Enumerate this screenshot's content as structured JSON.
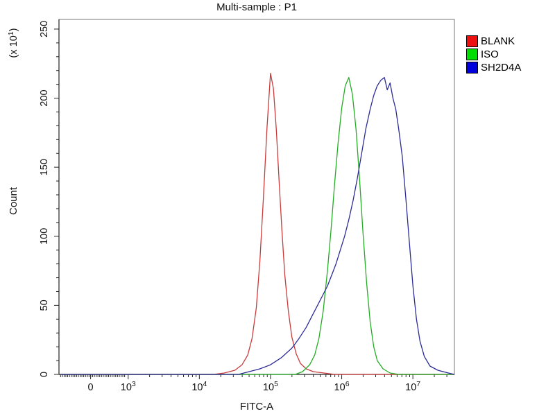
{
  "chart_data": {
    "type": "line",
    "subtype": "flow-cytometry-histogram-overlay",
    "title": "Multi-sample : P1",
    "xlabel": "FITC-A",
    "ylabel": "Count",
    "grid": false,
    "legend_position": "top-right-outside",
    "x_axis": {
      "scale": "flow-biexponential (linear near 0, logarithmic above 10^3)",
      "zero_frac": 0.08,
      "log3_frac": 0.175,
      "decade_frac": 0.18,
      "ticks": [
        {
          "label": "0",
          "type": "zero"
        },
        {
          "base": "10",
          "exp": "3",
          "log": 3
        },
        {
          "base": "10",
          "exp": "4",
          "log": 4
        },
        {
          "base": "10",
          "exp": "5",
          "log": 5
        },
        {
          "base": "10",
          "exp": "6",
          "log": 6
        },
        {
          "base": "10",
          "exp": "7",
          "log": 7
        }
      ],
      "minor_cluster": {
        "from": 0.004,
        "to": 0.168,
        "step": 0.0045
      }
    },
    "y_axis": {
      "min": 0,
      "max": 257,
      "tick_values": [
        0,
        50,
        100,
        150,
        200,
        250
      ],
      "tick_labels": [
        "0",
        "50",
        "100",
        "150",
        "200",
        "250"
      ],
      "minor_step": 10,
      "unit": {
        "open": "(x 10",
        "exp": "1",
        "close": ")"
      }
    },
    "series": [
      {
        "name": "BLANK",
        "curve_color": "#c93a3a",
        "legend_color": "#ee1111",
        "approx_peak_x": 100000,
        "approx_peak_count": 218,
        "points_logx_count": [
          [
            2.05,
            0
          ],
          [
            4.2,
            0
          ],
          [
            4.35,
            1
          ],
          [
            4.5,
            3
          ],
          [
            4.6,
            7
          ],
          [
            4.68,
            14
          ],
          [
            4.74,
            26
          ],
          [
            4.8,
            48
          ],
          [
            4.85,
            82
          ],
          [
            4.9,
            128
          ],
          [
            4.95,
            178
          ],
          [
            5.0,
            218
          ],
          [
            5.04,
            207
          ],
          [
            5.08,
            178
          ],
          [
            5.12,
            140
          ],
          [
            5.16,
            104
          ],
          [
            5.2,
            72
          ],
          [
            5.25,
            46
          ],
          [
            5.3,
            27
          ],
          [
            5.36,
            15
          ],
          [
            5.42,
            8
          ],
          [
            5.5,
            4
          ],
          [
            5.6,
            2
          ],
          [
            5.75,
            1
          ],
          [
            5.9,
            0
          ],
          [
            7.58,
            0
          ]
        ]
      },
      {
        "name": "ISO",
        "curve_color": "#22ad22",
        "legend_color": "#00dd00",
        "approx_peak_x": 1300000,
        "approx_peak_count": 215,
        "points_logx_count": [
          [
            2.05,
            0
          ],
          [
            5.35,
            0
          ],
          [
            5.45,
            2
          ],
          [
            5.55,
            7
          ],
          [
            5.62,
            14
          ],
          [
            5.68,
            26
          ],
          [
            5.74,
            46
          ],
          [
            5.8,
            75
          ],
          [
            5.85,
            105
          ],
          [
            5.9,
            138
          ],
          [
            5.95,
            168
          ],
          [
            6.0,
            193
          ],
          [
            6.05,
            209
          ],
          [
            6.1,
            215
          ],
          [
            6.15,
            203
          ],
          [
            6.2,
            178
          ],
          [
            6.25,
            142
          ],
          [
            6.3,
            102
          ],
          [
            6.35,
            66
          ],
          [
            6.4,
            38
          ],
          [
            6.45,
            20
          ],
          [
            6.5,
            10
          ],
          [
            6.58,
            4
          ],
          [
            6.68,
            1
          ],
          [
            6.8,
            0
          ],
          [
            7.58,
            0
          ]
        ]
      },
      {
        "name": "SH2D4A",
        "curve_color": "#2b2b96",
        "legend_color": "#0000dd",
        "approx_peak_x": 4000000,
        "approx_peak_count": 215,
        "points_logx_count": [
          [
            2.05,
            0
          ],
          [
            4.55,
            0
          ],
          [
            4.7,
            2
          ],
          [
            4.85,
            4
          ],
          [
            5.0,
            7
          ],
          [
            5.15,
            12
          ],
          [
            5.3,
            19
          ],
          [
            5.4,
            26
          ],
          [
            5.5,
            34
          ],
          [
            5.58,
            42
          ],
          [
            5.66,
            50
          ],
          [
            5.74,
            58
          ],
          [
            5.8,
            64
          ],
          [
            5.86,
            72
          ],
          [
            5.92,
            80
          ],
          [
            5.98,
            90
          ],
          [
            6.04,
            100
          ],
          [
            6.1,
            112
          ],
          [
            6.16,
            126
          ],
          [
            6.22,
            142
          ],
          [
            6.28,
            160
          ],
          [
            6.34,
            178
          ],
          [
            6.4,
            192
          ],
          [
            6.45,
            202
          ],
          [
            6.5,
            209
          ],
          [
            6.55,
            213
          ],
          [
            6.6,
            215
          ],
          [
            6.64,
            206
          ],
          [
            6.68,
            211
          ],
          [
            6.72,
            200
          ],
          [
            6.76,
            192
          ],
          [
            6.8,
            178
          ],
          [
            6.85,
            158
          ],
          [
            6.9,
            128
          ],
          [
            6.95,
            96
          ],
          [
            7.0,
            64
          ],
          [
            7.05,
            40
          ],
          [
            7.1,
            24
          ],
          [
            7.16,
            13
          ],
          [
            7.24,
            6
          ],
          [
            7.35,
            3
          ],
          [
            7.5,
            1
          ],
          [
            7.58,
            0
          ]
        ]
      }
    ]
  }
}
